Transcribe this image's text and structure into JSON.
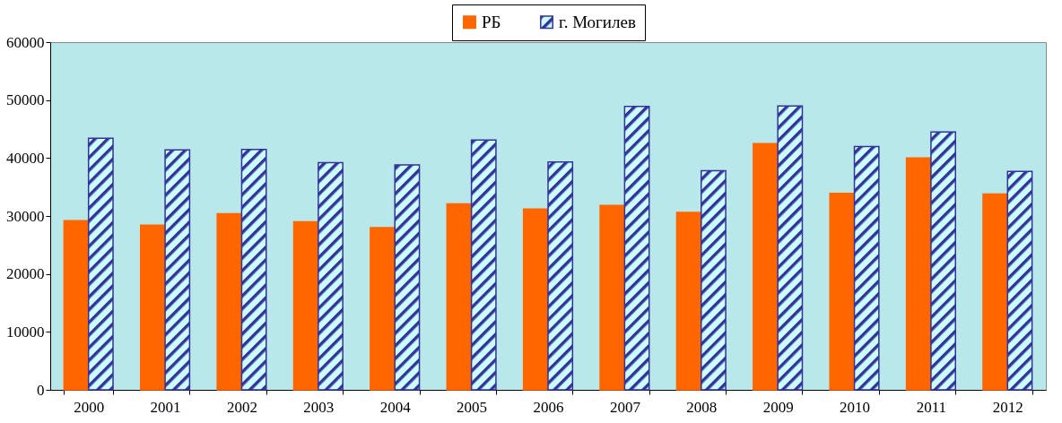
{
  "chart_data": {
    "type": "bar",
    "categories": [
      "2000",
      "2001",
      "2002",
      "2003",
      "2004",
      "2005",
      "2006",
      "2007",
      "2008",
      "2009",
      "2010",
      "2011",
      "2012"
    ],
    "series": [
      {
        "name": "РБ",
        "color": "#ff6600",
        "values": [
          29200,
          28400,
          30400,
          29000,
          28000,
          32100,
          31200,
          31800,
          30600,
          42500,
          33900,
          40000,
          33800
        ]
      },
      {
        "name": "г. Могилев",
        "color": "#333399",
        "values": [
          43400,
          41400,
          41500,
          39200,
          38800,
          43100,
          39300,
          48900,
          37800,
          49000,
          42000,
          44500,
          37700
        ]
      }
    ],
    "ylim": [
      0,
      60000
    ],
    "yticks": [
      0,
      10000,
      20000,
      30000,
      40000,
      50000,
      60000
    ],
    "grid": false,
    "legend": "top"
  }
}
